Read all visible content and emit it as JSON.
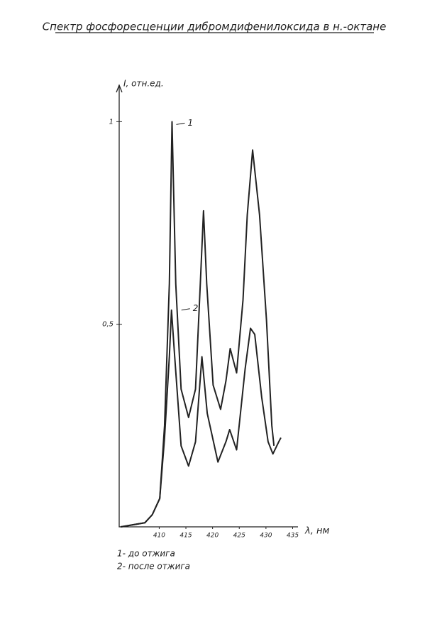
{
  "chart_data": {
    "type": "line",
    "title": "Спектр фосфоресценции дибромдифенилоксида в н.-октане",
    "y_label": "I, отн.ед.",
    "x_label": "λ, нм",
    "xlim": [
      402.5,
      436
    ],
    "ylim": [
      0,
      1.09
    ],
    "xticks": [
      410,
      415,
      420,
      425,
      430,
      435
    ],
    "yticks": [
      {
        "value": 0.5,
        "label": "0,5"
      },
      1
    ],
    "color": "#222222",
    "series": [
      {
        "name": "1",
        "x": [
          402.8,
          407.3,
          408.7,
          410.1,
          411.0,
          411.9,
          412.4,
          413.1,
          414.1,
          415.5,
          416.8,
          417.7,
          418.3,
          418.9,
          420.1,
          421.5,
          422.5,
          423.3,
          424.5,
          425.7,
          426.5,
          427.5,
          428.8,
          430.1,
          431.1,
          431.5
        ],
        "values": [
          0,
          0.01,
          0.03,
          0.07,
          0.25,
          0.6,
          1.0,
          0.6,
          0.34,
          0.27,
          0.34,
          0.6,
          0.78,
          0.6,
          0.35,
          0.29,
          0.36,
          0.44,
          0.38,
          0.56,
          0.77,
          0.93,
          0.77,
          0.51,
          0.25,
          0.2
        ]
      },
      {
        "name": "2",
        "x": [
          402.8,
          407.3,
          408.7,
          410.1,
          411.0,
          411.9,
          412.3,
          412.9,
          414.1,
          415.5,
          416.8,
          418.0,
          419.0,
          421.0,
          422.5,
          423.2,
          424.5,
          426.1,
          427.1,
          427.9,
          429.2,
          430.4,
          431.3,
          432.4,
          432.8
        ],
        "values": [
          0,
          0.01,
          0.03,
          0.07,
          0.22,
          0.42,
          0.535,
          0.42,
          0.2,
          0.15,
          0.21,
          0.42,
          0.28,
          0.16,
          0.21,
          0.24,
          0.19,
          0.39,
          0.49,
          0.475,
          0.32,
          0.21,
          0.18,
          0.21,
          0.22
        ]
      }
    ],
    "notes": [
      "1- до отжига",
      "2- после отжига"
    ]
  }
}
